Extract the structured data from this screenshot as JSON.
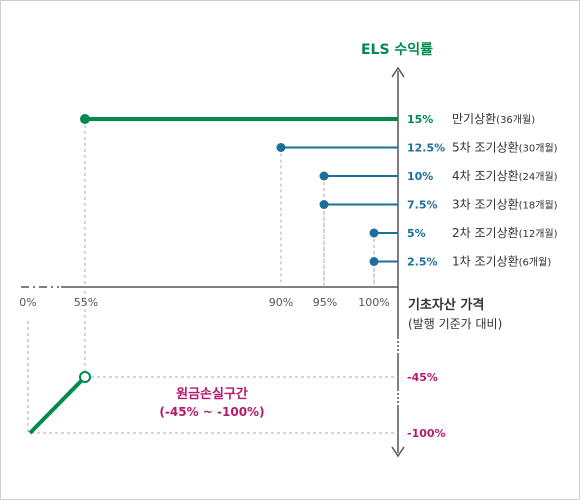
{
  "y_axis_title": "ELS 수익률",
  "x_axis_title": "기초자산 가격",
  "x_axis_subtitle": "(발행 기준가 대비)",
  "x_ticks": [
    "0%",
    "55%",
    "90%",
    "95%",
    "100%"
  ],
  "redemptions": [
    {
      "rate": "15%",
      "name": "만기상환",
      "months": "(36개월)",
      "price_pct": 55,
      "rate_pct": 15
    },
    {
      "rate": "12.5%",
      "name": "5차 조기상환",
      "months": "(30개월)",
      "price_pct": 90,
      "rate_pct": 12.5
    },
    {
      "rate": "10%",
      "name": "4차 조기상환",
      "months": "(24개월)",
      "price_pct": 95,
      "rate_pct": 10
    },
    {
      "rate": "7.5%",
      "name": "3차 조기상환",
      "months": "(18개월)",
      "price_pct": 95,
      "rate_pct": 7.5
    },
    {
      "rate": "5%",
      "name": "2차 조기상환",
      "months": "(12개월)",
      "price_pct": 100,
      "rate_pct": 5
    },
    {
      "rate": "2.5%",
      "name": "1차 조기상환",
      "months": "(6개월)",
      "price_pct": 100,
      "rate_pct": 2.5
    }
  ],
  "loss": {
    "label": "원금손실구간",
    "range": "(-45% ~ -100%)",
    "y_labels": [
      "-45%",
      "-100%"
    ]
  },
  "colors": {
    "green": "#008a4e",
    "blue": "#1a6f9b",
    "magenta": "#b3196e",
    "axis": "#555555",
    "dash": "#aaaaaa",
    "text": "#333333"
  }
}
